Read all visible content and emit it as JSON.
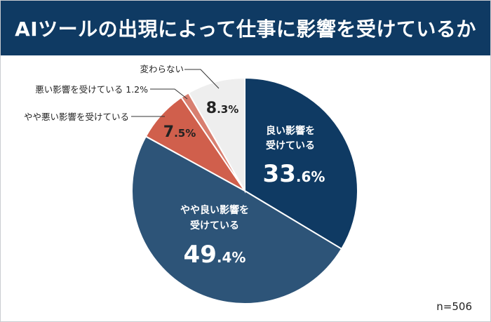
{
  "chart_data": {
    "type": "pie",
    "title": "AIツールの出現によって仕事に影響を受けているか",
    "sample_size": "n=506",
    "slices": [
      {
        "label_lines": [
          "良い影響を",
          "受けている"
        ],
        "value": 33.6,
        "int": "33",
        "dec": ".6%",
        "color": "#0f3a63"
      },
      {
        "label_lines": [
          "やや良い影響を",
          "受けている"
        ],
        "value": 49.4,
        "int": "49",
        "dec": ".4%",
        "color": "#2d5478"
      },
      {
        "label": "やや悪い影響を受けている",
        "value": 7.5,
        "int": "7",
        "dec": ".5%",
        "color": "#d05f4c"
      },
      {
        "label": "悪い影響を受けている 1.2%",
        "value": 1.2,
        "color": "#d87f70"
      },
      {
        "label": "変わらない",
        "value": 8.3,
        "int": "8",
        "dec": ".3%",
        "color": "#eeeeee"
      }
    ]
  }
}
